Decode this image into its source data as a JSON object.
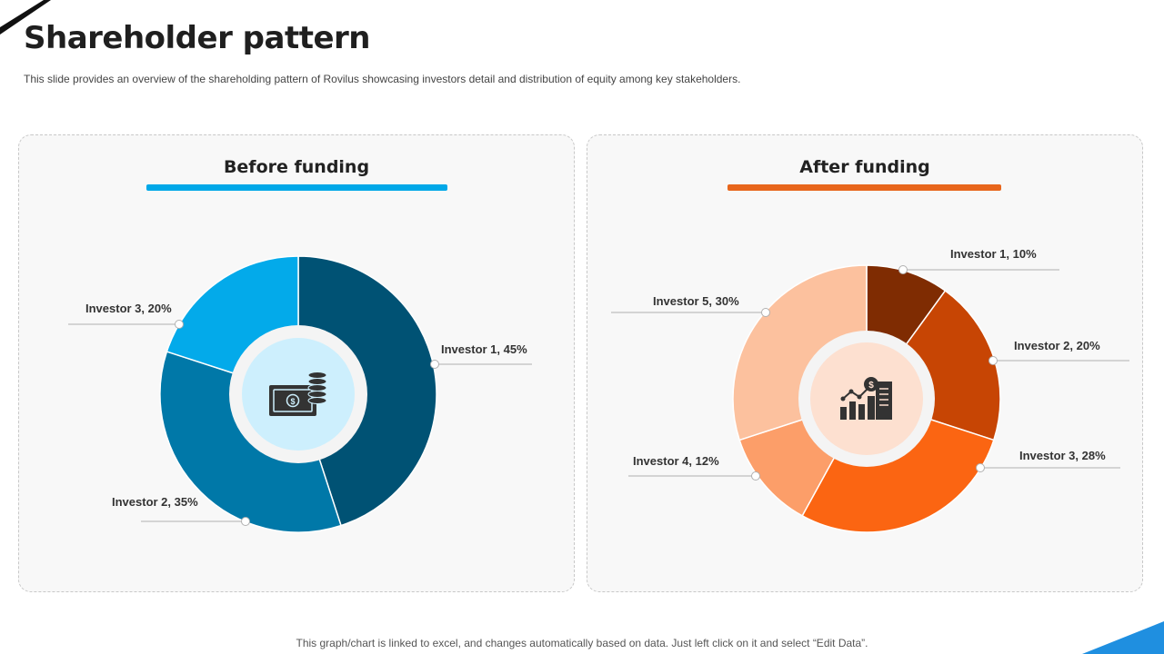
{
  "title": "Shareholder pattern",
  "subtitle": "This slide provides an overview of the shareholding pattern of Rovilus showcasing investors detail and distribution of equity among key stakeholders.",
  "footer": "This graph/chart is linked to excel,  and changes automatically based on data. Just left click on it and select “Edit Data”.",
  "colors": {
    "accent_blue": "#00a8e8",
    "accent_orange": "#e8661c"
  },
  "chart_data": [
    {
      "type": "pie",
      "title": "Before funding",
      "center_icon": "money-coins-icon",
      "slices": [
        {
          "label": "Investor 1, 45%",
          "value": 45,
          "color": "#005274"
        },
        {
          "label": "Investor 2, 35%",
          "value": 35,
          "color": "#0078a8"
        },
        {
          "label": "Investor 3, 20%",
          "value": 20,
          "color": "#03aaea"
        }
      ]
    },
    {
      "type": "pie",
      "title": "After funding",
      "center_icon": "financial-growth-icon",
      "slices": [
        {
          "label": "Investor 1, 10%",
          "value": 10,
          "color": "#7f2c02"
        },
        {
          "label": "Investor 2, 20%",
          "value": 20,
          "color": "#c74504"
        },
        {
          "label": "Investor 3, 28%",
          "value": 28,
          "color": "#fb6512"
        },
        {
          "label": "Investor 4, 12%",
          "value": 12,
          "color": "#fc9e69"
        },
        {
          "label": "Investor 5, 30%",
          "value": 30,
          "color": "#fcc19e"
        }
      ]
    }
  ]
}
